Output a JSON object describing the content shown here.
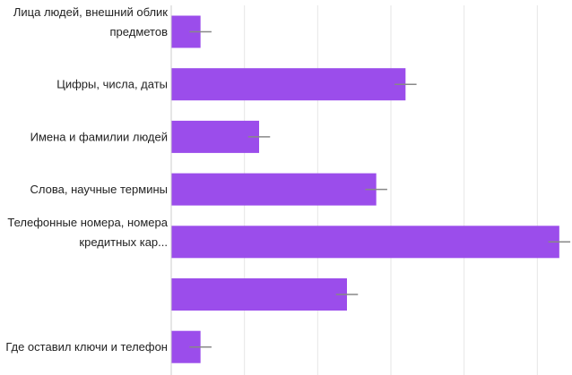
{
  "chart_data": {
    "type": "bar",
    "orientation": "horizontal",
    "title": "",
    "xlabel": "",
    "ylabel": "",
    "categories": [
      [
        "Лица людей, внешний облик",
        "предметов"
      ],
      [
        "Цифры, числа, даты"
      ],
      [
        "Имена и фамилии людей"
      ],
      [
        "Слова, научные термины"
      ],
      [
        "Телефонные номера, номера",
        "кредитных кар..."
      ],
      [],
      [
        "Где оставил ключи и телефон"
      ]
    ],
    "values": [
      8,
      64,
      24,
      56,
      106,
      48,
      8
    ],
    "error": [
      3,
      3,
      3,
      3,
      3,
      3,
      3
    ],
    "xlim": [
      0,
      108
    ],
    "grid_step": 20,
    "grid": true,
    "legend": "none",
    "colors": {
      "bar": "#9b4deb",
      "error": "#888888",
      "grid": "#e6e6e6"
    }
  }
}
